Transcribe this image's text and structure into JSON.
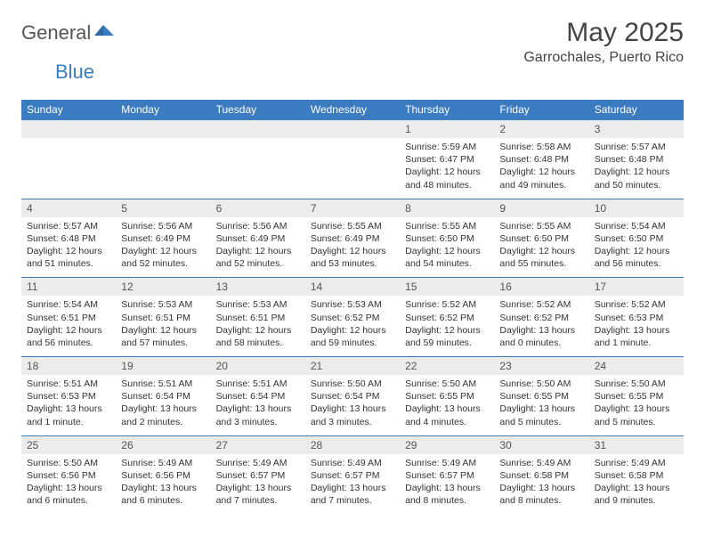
{
  "brand": {
    "part1": "General",
    "part2": "Blue"
  },
  "title": "May 2025",
  "location": "Garrochales, Puerto Rico",
  "colors": {
    "header_bg": "#3b7bbf",
    "daynum_bg": "#ececec",
    "text": "#333333"
  },
  "daysOfWeek": [
    "Sunday",
    "Monday",
    "Tuesday",
    "Wednesday",
    "Thursday",
    "Friday",
    "Saturday"
  ],
  "weeks": [
    [
      null,
      null,
      null,
      null,
      {
        "n": "1",
        "sr": "5:59 AM",
        "ss": "6:47 PM",
        "dl": "12 hours and 48 minutes."
      },
      {
        "n": "2",
        "sr": "5:58 AM",
        "ss": "6:48 PM",
        "dl": "12 hours and 49 minutes."
      },
      {
        "n": "3",
        "sr": "5:57 AM",
        "ss": "6:48 PM",
        "dl": "12 hours and 50 minutes."
      }
    ],
    [
      {
        "n": "4",
        "sr": "5:57 AM",
        "ss": "6:48 PM",
        "dl": "12 hours and 51 minutes."
      },
      {
        "n": "5",
        "sr": "5:56 AM",
        "ss": "6:49 PM",
        "dl": "12 hours and 52 minutes."
      },
      {
        "n": "6",
        "sr": "5:56 AM",
        "ss": "6:49 PM",
        "dl": "12 hours and 52 minutes."
      },
      {
        "n": "7",
        "sr": "5:55 AM",
        "ss": "6:49 PM",
        "dl": "12 hours and 53 minutes."
      },
      {
        "n": "8",
        "sr": "5:55 AM",
        "ss": "6:50 PM",
        "dl": "12 hours and 54 minutes."
      },
      {
        "n": "9",
        "sr": "5:55 AM",
        "ss": "6:50 PM",
        "dl": "12 hours and 55 minutes."
      },
      {
        "n": "10",
        "sr": "5:54 AM",
        "ss": "6:50 PM",
        "dl": "12 hours and 56 minutes."
      }
    ],
    [
      {
        "n": "11",
        "sr": "5:54 AM",
        "ss": "6:51 PM",
        "dl": "12 hours and 56 minutes."
      },
      {
        "n": "12",
        "sr": "5:53 AM",
        "ss": "6:51 PM",
        "dl": "12 hours and 57 minutes."
      },
      {
        "n": "13",
        "sr": "5:53 AM",
        "ss": "6:51 PM",
        "dl": "12 hours and 58 minutes."
      },
      {
        "n": "14",
        "sr": "5:53 AM",
        "ss": "6:52 PM",
        "dl": "12 hours and 59 minutes."
      },
      {
        "n": "15",
        "sr": "5:52 AM",
        "ss": "6:52 PM",
        "dl": "12 hours and 59 minutes."
      },
      {
        "n": "16",
        "sr": "5:52 AM",
        "ss": "6:52 PM",
        "dl": "13 hours and 0 minutes."
      },
      {
        "n": "17",
        "sr": "5:52 AM",
        "ss": "6:53 PM",
        "dl": "13 hours and 1 minute."
      }
    ],
    [
      {
        "n": "18",
        "sr": "5:51 AM",
        "ss": "6:53 PM",
        "dl": "13 hours and 1 minute."
      },
      {
        "n": "19",
        "sr": "5:51 AM",
        "ss": "6:54 PM",
        "dl": "13 hours and 2 minutes."
      },
      {
        "n": "20",
        "sr": "5:51 AM",
        "ss": "6:54 PM",
        "dl": "13 hours and 3 minutes."
      },
      {
        "n": "21",
        "sr": "5:50 AM",
        "ss": "6:54 PM",
        "dl": "13 hours and 3 minutes."
      },
      {
        "n": "22",
        "sr": "5:50 AM",
        "ss": "6:55 PM",
        "dl": "13 hours and 4 minutes."
      },
      {
        "n": "23",
        "sr": "5:50 AM",
        "ss": "6:55 PM",
        "dl": "13 hours and 5 minutes."
      },
      {
        "n": "24",
        "sr": "5:50 AM",
        "ss": "6:55 PM",
        "dl": "13 hours and 5 minutes."
      }
    ],
    [
      {
        "n": "25",
        "sr": "5:50 AM",
        "ss": "6:56 PM",
        "dl": "13 hours and 6 minutes."
      },
      {
        "n": "26",
        "sr": "5:49 AM",
        "ss": "6:56 PM",
        "dl": "13 hours and 6 minutes."
      },
      {
        "n": "27",
        "sr": "5:49 AM",
        "ss": "6:57 PM",
        "dl": "13 hours and 7 minutes."
      },
      {
        "n": "28",
        "sr": "5:49 AM",
        "ss": "6:57 PM",
        "dl": "13 hours and 7 minutes."
      },
      {
        "n": "29",
        "sr": "5:49 AM",
        "ss": "6:57 PM",
        "dl": "13 hours and 8 minutes."
      },
      {
        "n": "30",
        "sr": "5:49 AM",
        "ss": "6:58 PM",
        "dl": "13 hours and 8 minutes."
      },
      {
        "n": "31",
        "sr": "5:49 AM",
        "ss": "6:58 PM",
        "dl": "13 hours and 9 minutes."
      }
    ]
  ],
  "labels": {
    "sunrise": "Sunrise:",
    "sunset": "Sunset:",
    "daylight": "Daylight:"
  }
}
